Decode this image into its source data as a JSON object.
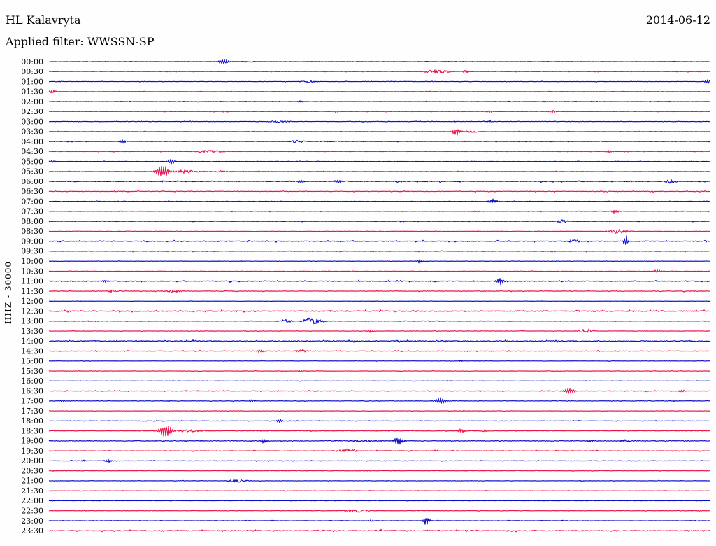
{
  "header": {
    "station": "HL Kalavryta",
    "date": "2014-06-12",
    "filter": "Applied filter: WWSSN-SP"
  },
  "axis": {
    "left_label": "HHZ - 30000"
  },
  "colors": {
    "blue": "#0b0bc8",
    "red": "#e8114b",
    "text": "#000000",
    "background": "#fefefe"
  },
  "chart_data": {
    "type": "line",
    "title": "HL Kalavryta helicorder, channel HHZ, scale 30000, filter WWSSN-SP, 2014-06-12",
    "row_duration_minutes": 30,
    "rows_count": 48,
    "trace_color_alternation": [
      "blue",
      "red"
    ],
    "event_pos_unit": "fraction of 30-minute row (0=row start, 1=row end)",
    "event_amp_unit": "pixels of peak deflection",
    "rows": [
      {
        "time": "00:00",
        "color": "blue",
        "noise": 0.5,
        "events": [
          {
            "pos": 0.265,
            "amp": 4.5,
            "w": 7,
            "kind": "spike"
          },
          {
            "pos": 0.3,
            "amp": 1.2,
            "w": 12,
            "kind": "burst"
          }
        ]
      },
      {
        "time": "00:30",
        "color": "red",
        "noise": 0.55,
        "events": [
          {
            "pos": 0.587,
            "amp": 3,
            "w": 16,
            "kind": "burst"
          },
          {
            "pos": 0.63,
            "amp": 1.8,
            "w": 6,
            "kind": "burst"
          }
        ]
      },
      {
        "time": "01:00",
        "color": "blue",
        "noise": 0.5,
        "events": [
          {
            "pos": 0.392,
            "amp": 1.6,
            "w": 10,
            "kind": "burst"
          },
          {
            "pos": 0.997,
            "amp": 4,
            "w": 4,
            "kind": "spike"
          }
        ]
      },
      {
        "time": "01:30",
        "color": "red",
        "noise": 0.5,
        "events": [
          {
            "pos": 0.005,
            "amp": 3,
            "w": 5,
            "kind": "spike"
          }
        ]
      },
      {
        "time": "02:00",
        "color": "blue",
        "noise": 0.45,
        "events": [
          {
            "pos": 0.381,
            "amp": 1.2,
            "w": 4,
            "kind": "spike"
          },
          {
            "pos": 0.75,
            "amp": 1.0,
            "w": 4,
            "kind": "spike"
          }
        ]
      },
      {
        "time": "02:30",
        "color": "red",
        "noise": 0.5,
        "events": [
          {
            "pos": 0.265,
            "amp": 1.5,
            "w": 4,
            "kind": "spike"
          },
          {
            "pos": 0.434,
            "amp": 1.5,
            "w": 4,
            "kind": "spike"
          },
          {
            "pos": 0.667,
            "amp": 1.8,
            "w": 5,
            "kind": "spike"
          },
          {
            "pos": 0.762,
            "amp": 2,
            "w": 5,
            "kind": "spike"
          }
        ]
      },
      {
        "time": "03:00",
        "color": "blue",
        "noise": 0.6,
        "events": [
          {
            "pos": 0.349,
            "amp": 1.8,
            "w": 14,
            "kind": "burst"
          },
          {
            "pos": 0.667,
            "amp": 1.5,
            "w": 4,
            "kind": "spike"
          }
        ]
      },
      {
        "time": "03:30",
        "color": "red",
        "noise": 0.55,
        "events": [
          {
            "pos": 0.616,
            "amp": 6,
            "w": 6,
            "kind": "spike"
          },
          {
            "pos": 0.64,
            "amp": 1.5,
            "w": 10,
            "kind": "burst"
          }
        ]
      },
      {
        "time": "04:00",
        "color": "blue",
        "noise": 0.6,
        "events": [
          {
            "pos": 0.111,
            "amp": 3,
            "w": 5,
            "kind": "spike"
          },
          {
            "pos": 0.376,
            "amp": 2.2,
            "w": 10,
            "kind": "burst"
          }
        ]
      },
      {
        "time": "04:30",
        "color": "red",
        "noise": 0.6,
        "events": [
          {
            "pos": 0.243,
            "amp": 1.8,
            "w": 22,
            "kind": "burst"
          },
          {
            "pos": 0.847,
            "amp": 2,
            "w": 6,
            "kind": "spike"
          }
        ]
      },
      {
        "time": "05:00",
        "color": "blue",
        "noise": 0.5,
        "events": [
          {
            "pos": 0.005,
            "amp": 2,
            "w": 4,
            "kind": "spike"
          },
          {
            "pos": 0.185,
            "amp": 4.5,
            "w": 5,
            "kind": "spike"
          }
        ]
      },
      {
        "time": "05:30",
        "color": "red",
        "noise": 0.6,
        "events": [
          {
            "pos": 0.172,
            "amp": 11,
            "w": 9,
            "kind": "spike"
          },
          {
            "pos": 0.205,
            "amp": 2.5,
            "w": 16,
            "kind": "burst"
          },
          {
            "pos": 0.26,
            "amp": 1.5,
            "w": 10,
            "kind": "burst"
          }
        ]
      },
      {
        "time": "06:00",
        "color": "blue",
        "noise": 1.0,
        "events": [
          {
            "pos": 0.381,
            "amp": 2.5,
            "w": 5,
            "kind": "spike"
          },
          {
            "pos": 0.439,
            "amp": 3,
            "w": 5,
            "kind": "spike"
          },
          {
            "pos": 0.94,
            "amp": 2.5,
            "w": 8,
            "kind": "burst"
          }
        ]
      },
      {
        "time": "06:30",
        "color": "red",
        "noise": 0.8,
        "events": []
      },
      {
        "time": "07:00",
        "color": "blue",
        "noise": 0.6,
        "events": [
          {
            "pos": 0.672,
            "amp": 4,
            "w": 6,
            "kind": "spike"
          }
        ]
      },
      {
        "time": "07:30",
        "color": "red",
        "noise": 0.55,
        "events": [
          {
            "pos": 0.857,
            "amp": 3,
            "w": 5,
            "kind": "spike"
          },
          {
            "pos": 0.645,
            "amp": 1.2,
            "w": 4,
            "kind": "spike"
          }
        ]
      },
      {
        "time": "08:00",
        "color": "blue",
        "noise": 0.6,
        "events": [
          {
            "pos": 0.778,
            "amp": 3,
            "w": 7,
            "kind": "burst"
          }
        ]
      },
      {
        "time": "08:30",
        "color": "red",
        "noise": 0.6,
        "events": [
          {
            "pos": 0.862,
            "amp": 3.5,
            "w": 14,
            "kind": "burst"
          }
        ]
      },
      {
        "time": "09:00",
        "color": "blue",
        "noise": 1.0,
        "events": [
          {
            "pos": 0.794,
            "amp": 2.5,
            "w": 10,
            "kind": "burst"
          },
          {
            "pos": 0.873,
            "amp": 10,
            "w": 3,
            "kind": "spike"
          }
        ]
      },
      {
        "time": "09:30",
        "color": "red",
        "noise": 0.7,
        "events": []
      },
      {
        "time": "10:00",
        "color": "blue",
        "noise": 0.5,
        "events": [
          {
            "pos": 0.561,
            "amp": 3,
            "w": 4,
            "kind": "spike"
          }
        ]
      },
      {
        "time": "10:30",
        "color": "red",
        "noise": 0.55,
        "events": [
          {
            "pos": 0.921,
            "amp": 3,
            "w": 5,
            "kind": "spike"
          }
        ]
      },
      {
        "time": "11:00",
        "color": "blue",
        "noise": 1.1,
        "events": [
          {
            "pos": 0.085,
            "amp": 2,
            "w": 5,
            "kind": "spike"
          },
          {
            "pos": 0.683,
            "amp": 5.5,
            "w": 6,
            "kind": "spike"
          }
        ]
      },
      {
        "time": "11:30",
        "color": "red",
        "noise": 0.8,
        "events": [
          {
            "pos": 0.095,
            "amp": 1.8,
            "w": 8,
            "kind": "burst"
          },
          {
            "pos": 0.19,
            "amp": 2.5,
            "w": 12,
            "kind": "burst"
          }
        ]
      },
      {
        "time": "12:00",
        "color": "blue",
        "noise": 0.35,
        "events": []
      },
      {
        "time": "12:30",
        "color": "red",
        "noise": 1.4,
        "events": []
      },
      {
        "time": "13:00",
        "color": "blue",
        "noise": 0.5,
        "events": [
          {
            "pos": 0.357,
            "amp": 2.8,
            "w": 9,
            "kind": "burst"
          },
          {
            "pos": 0.399,
            "amp": 5.5,
            "w": 13,
            "kind": "burst"
          }
        ]
      },
      {
        "time": "13:30",
        "color": "red",
        "noise": 0.6,
        "events": [
          {
            "pos": 0.487,
            "amp": 2.5,
            "w": 6,
            "kind": "spike"
          },
          {
            "pos": 0.813,
            "amp": 3,
            "w": 10,
            "kind": "burst"
          }
        ]
      },
      {
        "time": "14:00",
        "color": "blue",
        "noise": 1.4,
        "events": []
      },
      {
        "time": "14:30",
        "color": "red",
        "noise": 0.8,
        "events": [
          {
            "pos": 0.32,
            "amp": 2.2,
            "w": 6,
            "kind": "spike"
          },
          {
            "pos": 0.383,
            "amp": 2.2,
            "w": 9,
            "kind": "burst"
          }
        ]
      },
      {
        "time": "15:00",
        "color": "blue",
        "noise": 0.4,
        "events": [
          {
            "pos": 0.624,
            "amp": 1.2,
            "w": 4,
            "kind": "spike"
          }
        ]
      },
      {
        "time": "15:30",
        "color": "red",
        "noise": 0.55,
        "events": [
          {
            "pos": 0.381,
            "amp": 2,
            "w": 4,
            "kind": "spike"
          }
        ]
      },
      {
        "time": "16:00",
        "color": "blue",
        "noise": 0.4,
        "events": []
      },
      {
        "time": "16:30",
        "color": "red",
        "noise": 0.8,
        "events": [
          {
            "pos": 0.788,
            "amp": 4.5,
            "w": 8,
            "kind": "spike"
          },
          {
            "pos": 0.958,
            "amp": 2.5,
            "w": 4,
            "kind": "spike"
          }
        ]
      },
      {
        "time": "17:00",
        "color": "blue",
        "noise": 0.7,
        "events": [
          {
            "pos": 0.021,
            "amp": 2,
            "w": 4,
            "kind": "spike"
          },
          {
            "pos": 0.307,
            "amp": 3,
            "w": 4,
            "kind": "spike"
          },
          {
            "pos": 0.593,
            "amp": 5,
            "w": 8,
            "kind": "spike"
          }
        ]
      },
      {
        "time": "17:30",
        "color": "red",
        "noise": 0.5,
        "events": []
      },
      {
        "time": "18:00",
        "color": "blue",
        "noise": 0.55,
        "events": [
          {
            "pos": 0.349,
            "amp": 3.5,
            "w": 4,
            "kind": "spike"
          }
        ]
      },
      {
        "time": "18:30",
        "color": "red",
        "noise": 0.6,
        "events": [
          {
            "pos": 0.177,
            "amp": 10,
            "w": 9,
            "kind": "spike"
          },
          {
            "pos": 0.212,
            "amp": 2,
            "w": 18,
            "kind": "burst"
          },
          {
            "pos": 0.624,
            "amp": 3.5,
            "w": 5,
            "kind": "spike"
          },
          {
            "pos": 0.66,
            "amp": 1.5,
            "w": 6,
            "kind": "burst"
          }
        ]
      },
      {
        "time": "19:00",
        "color": "blue",
        "noise": 1.0,
        "events": [
          {
            "pos": 0.325,
            "amp": 3.5,
            "w": 5,
            "kind": "spike"
          },
          {
            "pos": 0.476,
            "amp": 1.5,
            "w": 18,
            "kind": "burst"
          },
          {
            "pos": 0.529,
            "amp": 6.5,
            "w": 7,
            "kind": "spike"
          },
          {
            "pos": 0.82,
            "amp": 2,
            "w": 5,
            "kind": "spike"
          },
          {
            "pos": 0.868,
            "amp": 2,
            "w": 5,
            "kind": "spike"
          }
        ]
      },
      {
        "time": "19:30",
        "color": "red",
        "noise": 0.7,
        "events": [
          {
            "pos": 0.45,
            "amp": 2.5,
            "w": 16,
            "kind": "burst"
          }
        ]
      },
      {
        "time": "20:00",
        "color": "blue",
        "noise": 0.6,
        "events": [
          {
            "pos": 0.053,
            "amp": 1.5,
            "w": 4,
            "kind": "spike"
          },
          {
            "pos": 0.09,
            "amp": 2.5,
            "w": 5,
            "kind": "spike"
          }
        ]
      },
      {
        "time": "20:30",
        "color": "red",
        "noise": 0.5,
        "events": []
      },
      {
        "time": "21:00",
        "color": "blue",
        "noise": 0.5,
        "events": [
          {
            "pos": 0.286,
            "amp": 2.2,
            "w": 14,
            "kind": "burst"
          }
        ]
      },
      {
        "time": "21:30",
        "color": "red",
        "noise": 0.5,
        "events": []
      },
      {
        "time": "22:00",
        "color": "blue",
        "noise": 0.45,
        "events": []
      },
      {
        "time": "22:30",
        "color": "red",
        "noise": 0.6,
        "events": [
          {
            "pos": 0.466,
            "amp": 2.5,
            "w": 16,
            "kind": "burst"
          }
        ]
      },
      {
        "time": "23:00",
        "color": "blue",
        "noise": 0.55,
        "events": [
          {
            "pos": 0.487,
            "amp": 1.5,
            "w": 4,
            "kind": "spike"
          },
          {
            "pos": 0.571,
            "amp": 6,
            "w": 5,
            "kind": "spike"
          }
        ]
      },
      {
        "time": "23:30",
        "color": "red",
        "noise": 1.2,
        "events": []
      }
    ]
  }
}
